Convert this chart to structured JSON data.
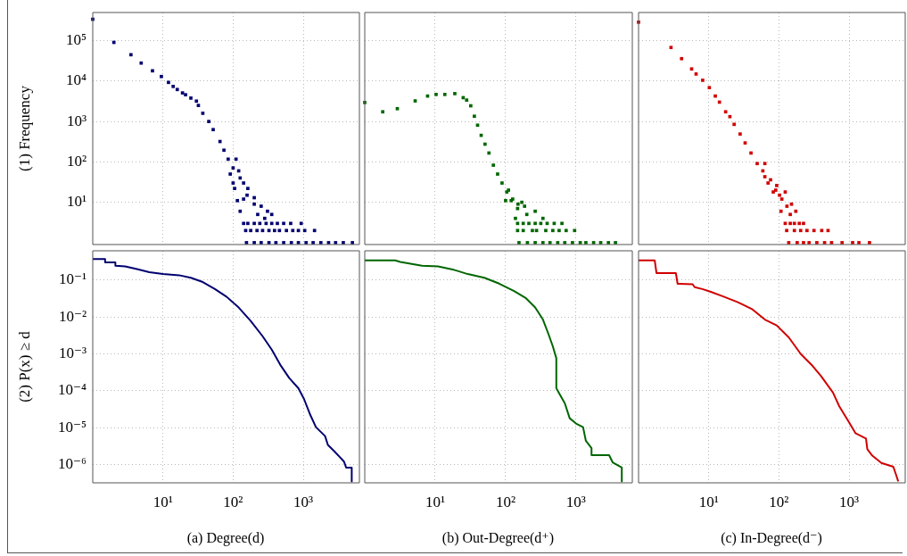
{
  "chart_data": [
    {
      "type": "scatter",
      "ylabel": "(1) Frequency",
      "color": "#000070",
      "marker": "square",
      "log": "xy",
      "grid": true,
      "tick_labels": "y",
      "xlim": [
        1,
        6300
      ],
      "ylim": [
        0.9,
        500000
      ],
      "xticks": [
        {
          "value": 10,
          "label": null
        },
        {
          "value": 100,
          "label": null
        },
        {
          "value": 1000,
          "label": null
        }
      ],
      "yticks": [
        {
          "value": 10,
          "label": "10¹"
        },
        {
          "value": 100,
          "label": "10²"
        },
        {
          "value": 1000,
          "label": "10³"
        },
        {
          "value": 10000,
          "label": "10⁴"
        },
        {
          "value": 100000,
          "label": "10⁵"
        }
      ],
      "x": [
        1,
        2,
        3.5,
        4.9,
        7.1,
        9.5,
        12,
        14,
        16,
        19,
        21,
        25,
        30,
        32,
        37,
        45,
        52,
        65,
        74,
        85,
        100,
        110,
        120,
        141,
        162,
        200,
        251,
        309,
        355,
        91,
        105,
        115,
        126,
        100,
        126,
        141,
        158,
        200,
        224,
        282,
        141,
        162,
        200,
        240,
        295,
        355,
        427,
        525,
        661,
        933,
        151,
        178,
        219,
        263,
        324,
        389,
        457,
        575,
        708,
        851,
        1047,
        1445,
        155,
        200,
        251,
        324,
        407,
        525,
        676,
        851,
        1096,
        1380,
        1778,
        2291,
        2884,
        3715,
        5012
      ],
      "values": [
        340000,
        91000,
        45000,
        28000,
        18000,
        13000,
        9300,
        7400,
        6200,
        5100,
        4600,
        3800,
        3200,
        2500,
        1600,
        1000,
        630,
        320,
        195,
        117,
        71,
        117,
        60,
        30,
        22,
        13,
        8,
        6,
        5,
        50,
        22,
        11,
        6,
        30,
        40,
        12,
        15,
        9,
        5,
        4,
        3,
        3,
        3,
        3,
        3,
        3,
        3,
        3,
        3,
        3,
        2,
        2,
        2,
        2,
        2,
        2,
        2,
        2,
        2,
        2,
        2,
        2,
        1,
        1,
        1,
        1,
        1,
        1,
        1,
        1,
        1,
        1,
        1,
        1,
        1,
        1,
        1
      ]
    },
    {
      "type": "scatter",
      "color": "#006600",
      "marker": "square",
      "log": "xy",
      "grid": true,
      "tick_labels": false,
      "xlim": [
        1,
        6300
      ],
      "ylim": [
        0.9,
        500000
      ],
      "xticks": [
        {
          "value": 10,
          "label": null
        },
        {
          "value": 100,
          "label": null
        },
        {
          "value": 1000,
          "label": null
        }
      ],
      "yticks": [
        {
          "value": 10,
          "label": null
        },
        {
          "value": 100,
          "label": null
        },
        {
          "value": 1000,
          "label": null
        },
        {
          "value": 10000,
          "label": null
        },
        {
          "value": 100000,
          "label": null
        }
      ],
      "x": [
        1,
        1.8,
        2.9,
        5.2,
        7.8,
        10.3,
        13.7,
        19,
        25,
        28,
        32,
        36,
        40,
        45,
        51,
        58,
        67,
        77,
        89,
        104,
        120,
        148,
        186,
        263,
        339,
        100,
        138,
        110,
        126,
        150,
        170,
        200,
        148,
        178,
        214,
        263,
        316,
        389,
        490,
        631,
        148,
        178,
        240,
        275,
        372,
        468,
        575,
        724,
        955,
        155,
        204,
        263,
        339,
        427,
        550,
        692,
        891,
        1148,
        1380,
        1778,
        2239,
        2884,
        3631
      ],
      "values": [
        2950,
        1740,
        2080,
        3240,
        4270,
        4680,
        4680,
        4900,
        3890,
        3390,
        2450,
        1350,
        810,
        455,
        275,
        166,
        83,
        50,
        30,
        18,
        11,
        7,
        8,
        6,
        4,
        11,
        4,
        20,
        12,
        9,
        10,
        5,
        3,
        3,
        3,
        3,
        3,
        3,
        3,
        3,
        2,
        2,
        2,
        2,
        2,
        2,
        2,
        2,
        2,
        1,
        1,
        1,
        1,
        1,
        1,
        1,
        1,
        1,
        1,
        1,
        1,
        1,
        1
      ]
    },
    {
      "type": "scatter",
      "color": "#d00000",
      "marker": "square",
      "log": "xy",
      "grid": true,
      "tick_labels": false,
      "xlim": [
        1,
        6300
      ],
      "ylim": [
        0.9,
        500000
      ],
      "xticks": [
        {
          "value": 10,
          "label": null
        },
        {
          "value": 100,
          "label": null
        },
        {
          "value": 1000,
          "label": null
        }
      ],
      "yticks": [
        {
          "value": 10,
          "label": null
        },
        {
          "value": 100,
          "label": null
        },
        {
          "value": 1000,
          "label": null
        },
        {
          "value": 10000,
          "label": null
        },
        {
          "value": 100000,
          "label": null
        }
      ],
      "x": [
        1,
        2.9,
        4.1,
        5.7,
        6.6,
        8.2,
        10.2,
        12.4,
        14.2,
        17.4,
        20,
        23,
        28,
        33,
        40,
        49,
        59,
        63,
        76,
        93,
        102,
        123,
        151,
        174,
        63,
        83,
        107,
        70,
        90,
        110,
        130,
        145,
        123,
        145,
        166,
        195,
        224,
        129,
        166,
        204,
        251,
        316,
        407,
        501,
        138,
        182,
        224,
        269,
        347,
        447,
        562,
        794,
        1122,
        1380,
        1950
      ],
      "values": [
        288000,
        68000,
        36000,
        20000,
        15000,
        10500,
        6900,
        4270,
        3020,
        1740,
        1320,
        850,
        490,
        295,
        166,
        91,
        60,
        91,
        36,
        26,
        15,
        18,
        9,
        6,
        43,
        18,
        6,
        30,
        20,
        12,
        8,
        5,
        3,
        3,
        3,
        3,
        3,
        2,
        2,
        2,
        2,
        2,
        2,
        2,
        1,
        1,
        1,
        1,
        1,
        1,
        1,
        1,
        1,
        1,
        1
      ]
    },
    {
      "type": "line",
      "ylabel": "(2) P(x) ≥ d",
      "xlabel": "(a) Degree(d)",
      "color": "#000070",
      "marker": "none",
      "line_style": "solid",
      "log": "xy",
      "grid": true,
      "xlim": [
        1,
        6300
      ],
      "ylim": [
        3.2e-07,
        0.62
      ],
      "xticks": [
        {
          "value": 10,
          "label": "10¹"
        },
        {
          "value": 100,
          "label": "10²"
        },
        {
          "value": 1000,
          "label": "10³"
        }
      ],
      "yticks": [
        {
          "value": 1e-06,
          "label": "10⁻⁶"
        },
        {
          "value": 1e-05,
          "label": "10⁻⁵"
        },
        {
          "value": 0.0001,
          "label": "10⁻⁴"
        },
        {
          "value": 0.001,
          "label": "10⁻³"
        },
        {
          "value": 0.01,
          "label": "10⁻²"
        },
        {
          "value": 0.1,
          "label": "10⁻¹"
        }
      ],
      "x": [
        1,
        1.5,
        1.5,
        2.1,
        2.1,
        2.9,
        4.4,
        6.4,
        10,
        17,
        25,
        37,
        55,
        81,
        120,
        178,
        263,
        355,
        468,
        631,
        851,
        1023,
        1259,
        1514,
        2042,
        2239,
        2754,
        3311,
        3802,
        4074,
        4898,
        4898
      ],
      "values": [
        0.37,
        0.37,
        0.3,
        0.3,
        0.245,
        0.235,
        0.195,
        0.163,
        0.145,
        0.135,
        0.115,
        0.088,
        0.057,
        0.035,
        0.018,
        0.0078,
        0.003,
        0.0013,
        0.00051,
        0.00022,
        0.000117,
        6e-05,
        2.2e-05,
        1.03e-05,
        5.9e-06,
        3.4e-06,
        2.3e-06,
        1.6e-06,
        1.2e-06,
        8.3e-07,
        8.3e-07,
        3.5e-07
      ]
    },
    {
      "type": "line",
      "xlabel": "(b) Out-Degree(d⁺)",
      "color": "#006600",
      "marker": "none",
      "line_style": "solid",
      "log": "xy",
      "grid": true,
      "tick_labels": "x",
      "xlim": [
        1,
        6300
      ],
      "ylim": [
        3.2e-07,
        0.62
      ],
      "xticks": [
        {
          "value": 10,
          "label": "10¹"
        },
        {
          "value": 100,
          "label": "10²"
        },
        {
          "value": 1000,
          "label": "10³"
        }
      ],
      "yticks": [
        {
          "value": 1e-06,
          "label": null
        },
        {
          "value": 1e-05,
          "label": null
        },
        {
          "value": 0.0001,
          "label": null
        },
        {
          "value": 0.001,
          "label": null
        },
        {
          "value": 0.01,
          "label": null
        },
        {
          "value": 0.1,
          "label": null
        }
      ],
      "x": [
        1,
        2.7,
        3.2,
        6.5,
        11,
        19,
        29,
        50,
        81,
        132,
        195,
        263,
        339,
        407,
        468,
        525,
        525,
        603,
        692,
        813,
        1000,
        1259,
        1380,
        1660,
        1660,
        2951,
        3311,
        4467,
        4467
      ],
      "values": [
        0.34,
        0.34,
        0.31,
        0.245,
        0.235,
        0.186,
        0.145,
        0.115,
        0.08,
        0.05,
        0.032,
        0.018,
        0.0085,
        0.0034,
        0.0016,
        0.00076,
        0.000117,
        7.3e-05,
        4.6e-05,
        1.8e-05,
        1.29e-05,
        1.03e-05,
        4.4e-06,
        2.8e-06,
        1.8e-06,
        1.8e-06,
        1.15e-06,
        8.3e-07,
        3.5e-07
      ]
    },
    {
      "type": "line",
      "xlabel": "(c) In-Degree(d⁻)",
      "color": "#d00000",
      "marker": "none",
      "line_style": "solid",
      "log": "xy",
      "grid": true,
      "tick_labels": "x",
      "xlim": [
        1,
        6300
      ],
      "ylim": [
        3.2e-07,
        0.62
      ],
      "xticks": [
        {
          "value": 10,
          "label": "10¹"
        },
        {
          "value": 100,
          "label": "10²"
        },
        {
          "value": 1000,
          "label": "10³"
        }
      ],
      "yticks": [
        {
          "value": 1e-06,
          "label": null
        },
        {
          "value": 1e-05,
          "label": null
        },
        {
          "value": 0.0001,
          "label": null
        },
        {
          "value": 0.001,
          "label": null
        },
        {
          "value": 0.01,
          "label": null
        },
        {
          "value": 0.1,
          "label": null
        }
      ],
      "x": [
        1,
        1.7,
        1.8,
        3.4,
        3.6,
        5.9,
        6.3,
        8.1,
        10.7,
        16,
        26,
        42,
        63,
        93,
        138,
        204,
        302,
        398,
        589,
        724,
        977,
        1230,
        1738,
        1820,
        2138,
        2884,
        4266,
        4677,
        5012
      ],
      "values": [
        0.34,
        0.34,
        0.155,
        0.155,
        0.079,
        0.077,
        0.064,
        0.057,
        0.048,
        0.036,
        0.025,
        0.016,
        0.0085,
        0.0059,
        0.0028,
        0.001,
        0.00047,
        0.00025,
        8.9e-05,
        3.8e-05,
        1.5e-05,
        7.1e-06,
        5.1e-06,
        2.6e-06,
        1.74e-06,
        1.1e-06,
        8.7e-07,
        5.2e-07,
        3.5e-07
      ]
    }
  ]
}
